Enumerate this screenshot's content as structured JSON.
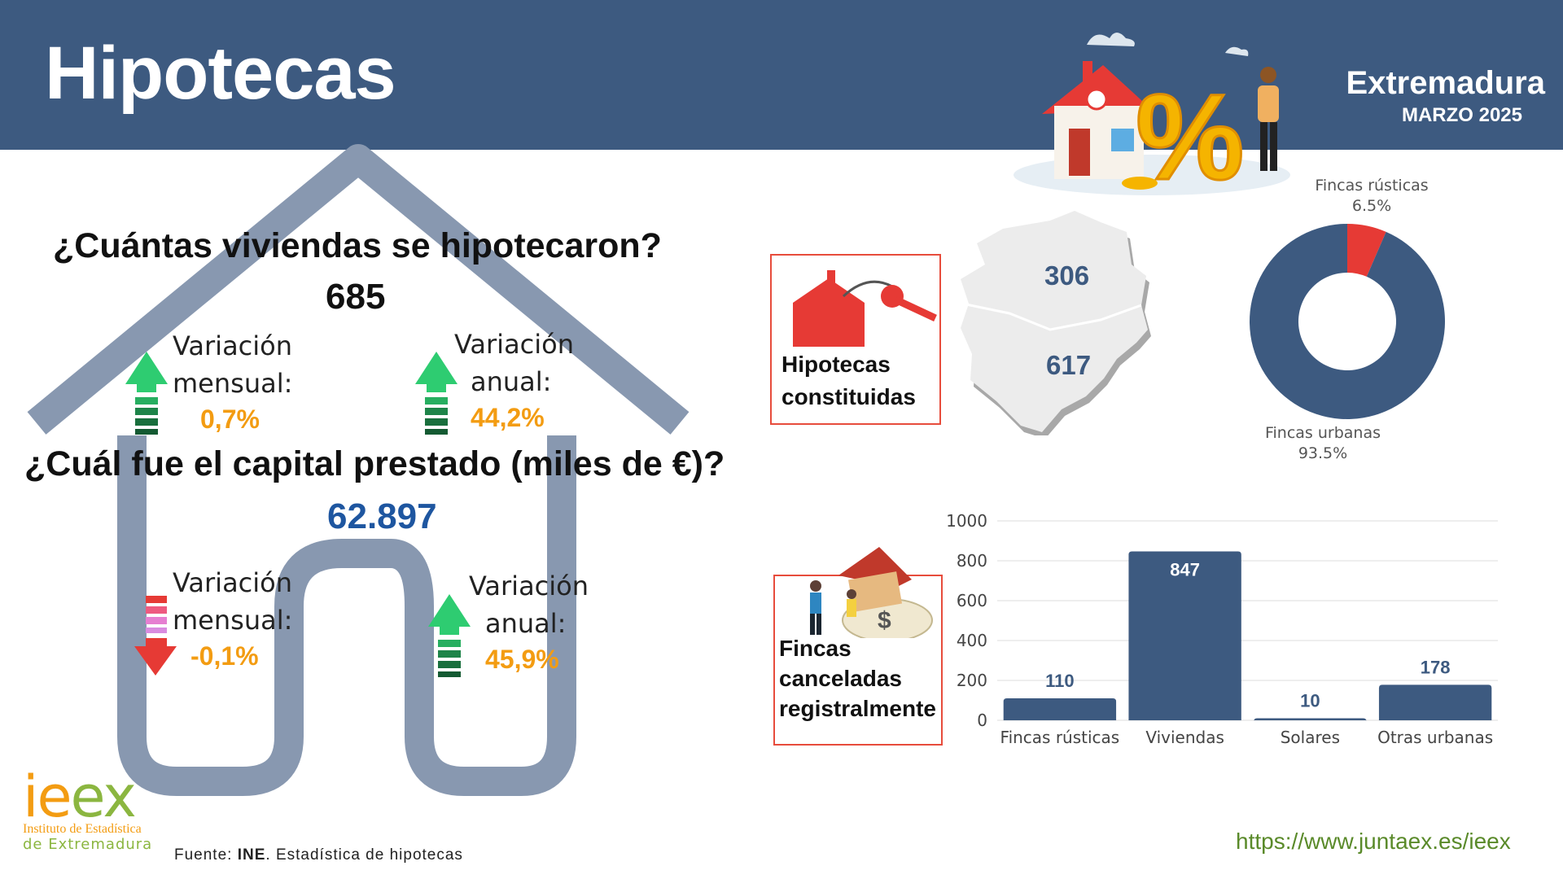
{
  "header": {
    "title": "Hipotecas",
    "region": "Extremadura",
    "period": "MARZO 2025"
  },
  "viviendas": {
    "question": "¿Cuántas viviendas se hipotecaron?",
    "value": "685",
    "mensual_label": [
      "Variación",
      "mensual:"
    ],
    "mensual_value": "0,7%",
    "anual_label": [
      "Variación",
      "anual:"
    ],
    "anual_value": "44,2%"
  },
  "capital": {
    "question": "¿Cuál fue el capital prestado (miles de €)?",
    "value": "62.897",
    "mensual_label": [
      "Variación",
      "mensual:"
    ],
    "mensual_value": "-0,1%",
    "anual_label": [
      "Variación",
      "anual:"
    ],
    "anual_value": "45,9%"
  },
  "constituidas": {
    "label": [
      "Hipotecas",
      "constituidas"
    ],
    "north_value": "306",
    "south_value": "617"
  },
  "canceladas_label": [
    "Fincas",
    "canceladas",
    "registralmente"
  ],
  "colors": {
    "header": "#3d5a80",
    "dark_blue": "#3d5a80",
    "red": "#e63a35",
    "orange": "#f39c12",
    "green": "#2ecc71",
    "house_gray": "#8898b0"
  },
  "chart_data": [
    {
      "type": "pie",
      "title": "",
      "slices": [
        {
          "label": "Fincas rústicas",
          "value": 6.5,
          "display": "6.5%",
          "color": "#e63a35"
        },
        {
          "label": "Fincas urbanas",
          "value": 93.5,
          "display": "93.5%",
          "color": "#3d5a80"
        }
      ]
    },
    {
      "type": "bar",
      "title": "",
      "categories": [
        "Fincas rústicas",
        "Viviendas",
        "Solares",
        "Otras urbanas"
      ],
      "values": [
        110,
        847,
        10,
        178
      ],
      "value_labels": [
        "110",
        "847",
        "10",
        "178"
      ],
      "ylim": [
        0,
        1000
      ],
      "yticks": [
        "0",
        "200",
        "400",
        "600",
        "800",
        "1000"
      ],
      "grid": true,
      "color": "#3d5a80"
    }
  ],
  "footer": {
    "logo_text": "ieex",
    "logo_sub1": "Instituto de Estadística",
    "logo_sub2": "de Extremadura",
    "source_prefix": "Fuente: ",
    "source_org": "INE",
    "source_rest": ". Estadística de hipotecas",
    "url": "https://www.juntaex.es/ieex"
  }
}
